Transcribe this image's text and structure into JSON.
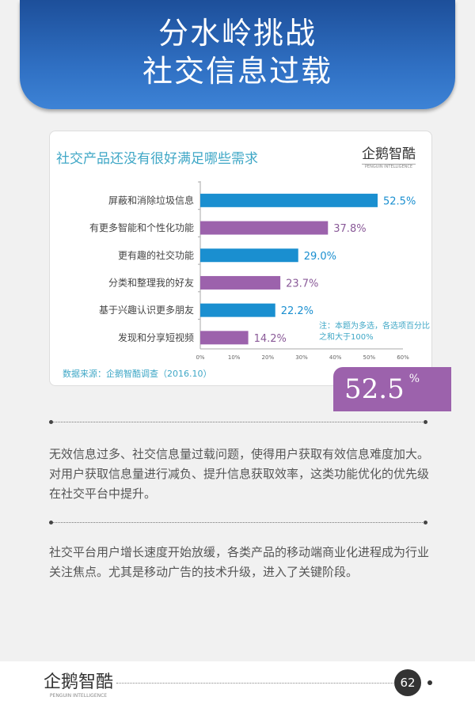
{
  "header": {
    "title_line1": "分水岭挑战",
    "title_line2": "社交信息过载"
  },
  "chart_data": {
    "type": "bar",
    "orientation": "horizontal",
    "title": "社交产品还没有很好满足哪些需求",
    "categories": [
      "屏蔽和消除垃圾信息",
      "有更多智能和个性化功能",
      "更有趣的社交功能",
      "分类和整理我的好友",
      "基于兴趣认识更多朋友",
      "发现和分享短视频"
    ],
    "values": [
      52.5,
      37.8,
      29.0,
      23.7,
      22.2,
      14.2
    ],
    "data_labels": [
      "52.5%",
      "37.8%",
      "29.0%",
      "23.7%",
      "22.2%",
      "14.2%"
    ],
    "xlim": [
      0,
      60
    ],
    "xticks": [
      "0%",
      "10%",
      "20%",
      "30%",
      "40%",
      "50%",
      "60%"
    ],
    "colors": [
      "#1a8fd0",
      "#9c62ac"
    ],
    "note": "注：本题为多选，各选项百分比之和大于100%",
    "source": "数据来源：企鹅智酷调查（2016.10）",
    "logo": "企鹅智酷",
    "logo_sub": "PENGUIN INTELLIGENCE"
  },
  "highlight": {
    "value": "52.5",
    "unit": "%"
  },
  "paragraphs": [
    "无效信息过多、社交信息量过载问题，使得用户获取有效信息难度加大。对用户获取信息量进行减负、提升信息获取效率，这类功能优化的优先级在社交平台中提升。",
    "社交平台用户增长速度开始放缓，各类产品的移动端商业化进程成为行业关注焦点。尤其是移动广告的技术升级，进入了关键阶段。"
  ],
  "footer": {
    "logo": "企鹅智酷",
    "logo_sub": "PENGUIN INTELLIGENCE",
    "page": "62"
  }
}
